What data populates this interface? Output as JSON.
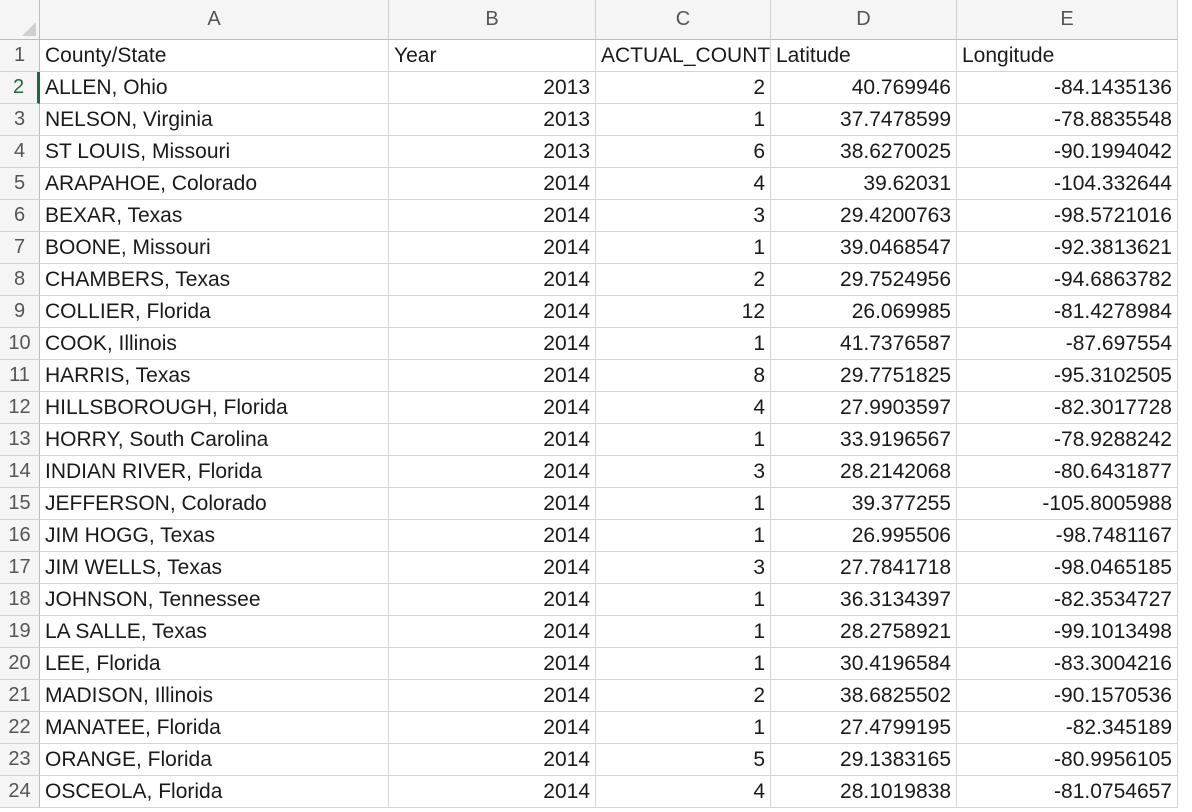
{
  "columns": [
    "A",
    "B",
    "C",
    "D",
    "E"
  ],
  "rows": [
    {
      "num": "1",
      "cells": [
        "County/State",
        "Year",
        "ACTUAL_COUNT",
        "Latitude",
        "Longitude"
      ]
    },
    {
      "num": "2",
      "cells": [
        "ALLEN, Ohio",
        "2013",
        "2",
        "40.769946",
        "-84.1435136"
      ]
    },
    {
      "num": "3",
      "cells": [
        "NELSON, Virginia",
        "2013",
        "1",
        "37.7478599",
        "-78.8835548"
      ]
    },
    {
      "num": "4",
      "cells": [
        "ST LOUIS, Missouri",
        "2013",
        "6",
        "38.6270025",
        "-90.1994042"
      ]
    },
    {
      "num": "5",
      "cells": [
        "ARAPAHOE, Colorado",
        "2014",
        "4",
        "39.62031",
        "-104.332644"
      ]
    },
    {
      "num": "6",
      "cells": [
        "BEXAR, Texas",
        "2014",
        "3",
        "29.4200763",
        "-98.5721016"
      ]
    },
    {
      "num": "7",
      "cells": [
        "BOONE, Missouri",
        "2014",
        "1",
        "39.0468547",
        "-92.3813621"
      ]
    },
    {
      "num": "8",
      "cells": [
        "CHAMBERS, Texas",
        "2014",
        "2",
        "29.7524956",
        "-94.6863782"
      ]
    },
    {
      "num": "9",
      "cells": [
        "COLLIER, Florida",
        "2014",
        "12",
        "26.069985",
        "-81.4278984"
      ]
    },
    {
      "num": "10",
      "cells": [
        "COOK, Illinois",
        "2014",
        "1",
        "41.7376587",
        "-87.697554"
      ]
    },
    {
      "num": "11",
      "cells": [
        "HARRIS, Texas",
        "2014",
        "8",
        "29.7751825",
        "-95.3102505"
      ]
    },
    {
      "num": "12",
      "cells": [
        "HILLSBOROUGH, Florida",
        "2014",
        "4",
        "27.9903597",
        "-82.3017728"
      ]
    },
    {
      "num": "13",
      "cells": [
        "HORRY, South Carolina",
        "2014",
        "1",
        "33.9196567",
        "-78.9288242"
      ]
    },
    {
      "num": "14",
      "cells": [
        "INDIAN RIVER, Florida",
        "2014",
        "3",
        "28.2142068",
        "-80.6431877"
      ]
    },
    {
      "num": "15",
      "cells": [
        "JEFFERSON, Colorado",
        "2014",
        "1",
        "39.377255",
        "-105.8005988"
      ]
    },
    {
      "num": "16",
      "cells": [
        "JIM HOGG, Texas",
        "2014",
        "1",
        "26.995506",
        "-98.7481167"
      ]
    },
    {
      "num": "17",
      "cells": [
        "JIM WELLS, Texas",
        "2014",
        "3",
        "27.7841718",
        "-98.0465185"
      ]
    },
    {
      "num": "18",
      "cells": [
        "JOHNSON, Tennessee",
        "2014",
        "1",
        "36.3134397",
        "-82.3534727"
      ]
    },
    {
      "num": "19",
      "cells": [
        "LA SALLE, Texas",
        "2014",
        "1",
        "28.2758921",
        "-99.1013498"
      ]
    },
    {
      "num": "20",
      "cells": [
        "LEE, Florida",
        "2014",
        "1",
        "30.4196584",
        "-83.3004216"
      ]
    },
    {
      "num": "21",
      "cells": [
        "MADISON, Illinois",
        "2014",
        "2",
        "38.6825502",
        "-90.1570536"
      ]
    },
    {
      "num": "22",
      "cells": [
        "MANATEE, Florida",
        "2014",
        "1",
        "27.4799195",
        "-82.345189"
      ]
    },
    {
      "num": "23",
      "cells": [
        "ORANGE, Florida",
        "2014",
        "5",
        "29.1383165",
        "-80.9956105"
      ]
    },
    {
      "num": "24",
      "cells": [
        "OSCEOLA, Florida",
        "2014",
        "4",
        "28.1019838",
        "-81.0754657"
      ]
    }
  ]
}
